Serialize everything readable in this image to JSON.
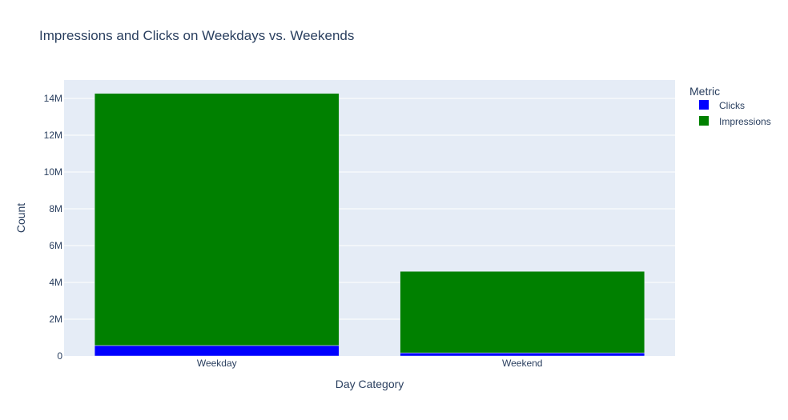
{
  "chart_data": {
    "type": "bar",
    "stacked": true,
    "title": "Impressions and Clicks on Weekdays vs. Weekends",
    "xlabel": "Day Category",
    "ylabel": "Count",
    "categories": [
      "Weekday",
      "Weekend"
    ],
    "series": [
      {
        "name": "Clicks",
        "values": [
          570000,
          170000
        ],
        "color": "#0000ff"
      },
      {
        "name": "Impressions",
        "values": [
          13700000,
          4430000
        ],
        "color": "#008000"
      }
    ],
    "ylim": [
      0,
      15000000
    ],
    "yticks": [
      0,
      2000000,
      4000000,
      6000000,
      8000000,
      10000000,
      12000000,
      14000000
    ],
    "ytick_labels": [
      "0",
      "2M",
      "4M",
      "6M",
      "8M",
      "10M",
      "12M",
      "14M"
    ],
    "grid": true,
    "plot_background": "#e5ecf6",
    "legend": {
      "title": "Metric",
      "placement": "top-right"
    }
  }
}
